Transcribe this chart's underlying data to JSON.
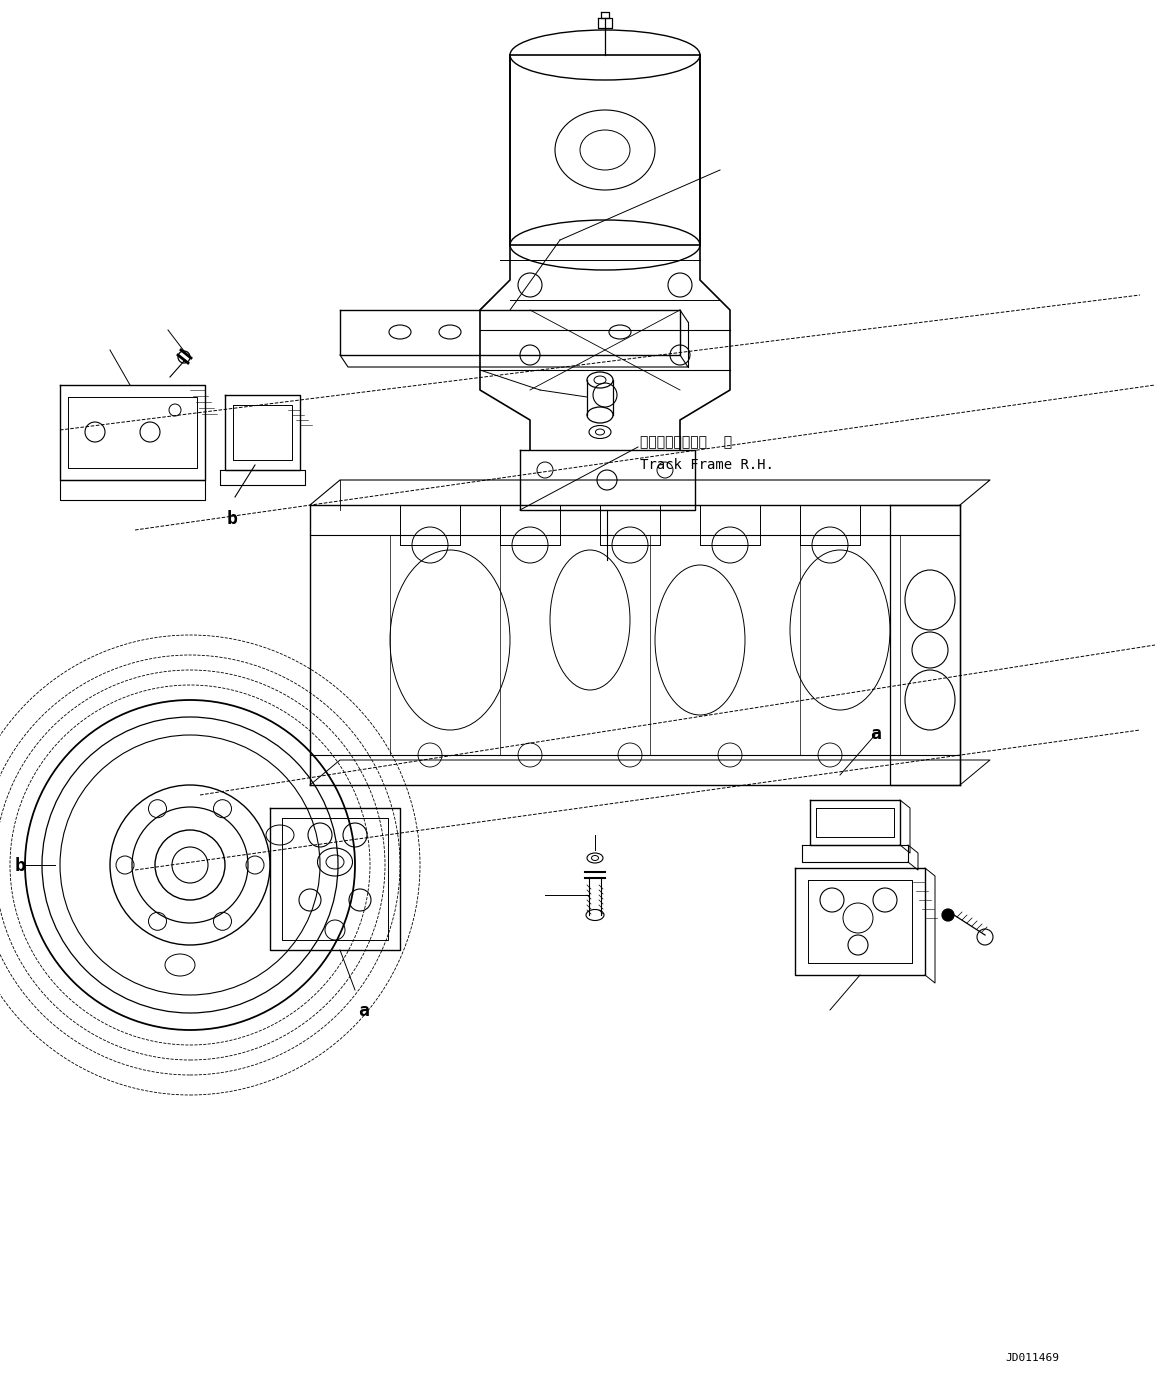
{
  "bg_color": "#ffffff",
  "line_color": "#000000",
  "fig_width": 11.63,
  "fig_height": 13.9,
  "dpi": 100,
  "label_a1": "a",
  "label_b1": "b",
  "label_a2": "a",
  "label_b2": "b",
  "label_track_jp": "トラックフレーム  右",
  "label_track_en": "Track Frame R.H.",
  "label_code": "JD011469",
  "text_font": "monospace"
}
